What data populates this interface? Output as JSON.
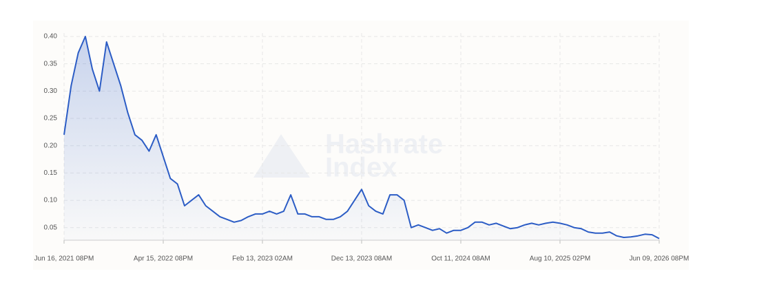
{
  "chart_data": {
    "type": "line",
    "watermark": [
      "Hashrate",
      "Index"
    ],
    "categories": [
      "Jun 16, 2021 08PM",
      null,
      null,
      null,
      null,
      null,
      null,
      null,
      null,
      null,
      null,
      null,
      null,
      null,
      "Apr 15, 2022 08PM",
      null,
      null,
      null,
      null,
      null,
      null,
      null,
      null,
      null,
      null,
      null,
      null,
      null,
      "Feb 13, 2023 02AM",
      null,
      null,
      null,
      null,
      null,
      null,
      null,
      null,
      null,
      null,
      null,
      null,
      null,
      "Dec 13, 2023 08AM",
      null,
      null,
      null,
      null,
      null,
      null,
      null,
      null,
      null,
      null,
      null,
      null,
      null,
      "Oct 11, 2024 08AM",
      null,
      null,
      null,
      null,
      null,
      null,
      null,
      null,
      null,
      null,
      null,
      null,
      null,
      "Aug 10, 2025 02PM",
      null,
      null,
      null,
      null,
      null,
      null,
      null,
      null,
      null,
      null,
      null,
      null,
      null,
      "Jun 09, 2026 08PM"
    ],
    "series": [
      {
        "color": "#2b5cc5",
        "values": [
          0.22,
          0.31,
          0.37,
          0.4,
          0.34,
          0.3,
          0.39,
          0.35,
          0.31,
          0.26,
          0.22,
          0.21,
          0.19,
          0.22,
          0.18,
          0.14,
          0.13,
          0.09,
          0.1,
          0.11,
          0.09,
          0.08,
          0.07,
          0.065,
          0.06,
          0.063,
          0.07,
          0.075,
          0.075,
          0.08,
          0.075,
          0.08,
          0.11,
          0.075,
          0.075,
          0.07,
          0.07,
          0.065,
          0.065,
          0.07,
          0.08,
          0.1,
          0.12,
          0.09,
          0.08,
          0.075,
          0.11,
          0.11,
          0.1,
          0.05,
          0.055,
          0.05,
          0.045,
          0.048,
          0.04,
          0.045,
          0.045,
          0.05,
          0.06,
          0.06,
          0.055,
          0.058,
          0.053,
          0.048,
          0.05,
          0.055,
          0.058,
          0.055,
          0.058,
          0.06,
          0.058,
          0.055,
          0.05,
          0.048,
          0.042,
          0.04,
          0.04,
          0.042,
          0.035,
          0.032,
          0.033,
          0.035,
          0.038,
          0.037,
          0.03
        ]
      }
    ],
    "ylim": [
      0.027,
      0.4
    ],
    "yticks": [
      0.05,
      {
        "value": 0.1,
        "label": "0.10"
      },
      0.15,
      {
        "value": 0.2,
        "label": "0.20"
      },
      0.25,
      {
        "value": 0.3,
        "label": "0.30"
      },
      0.35,
      {
        "value": 0.4,
        "label": "0.40"
      }
    ],
    "grid": true
  }
}
